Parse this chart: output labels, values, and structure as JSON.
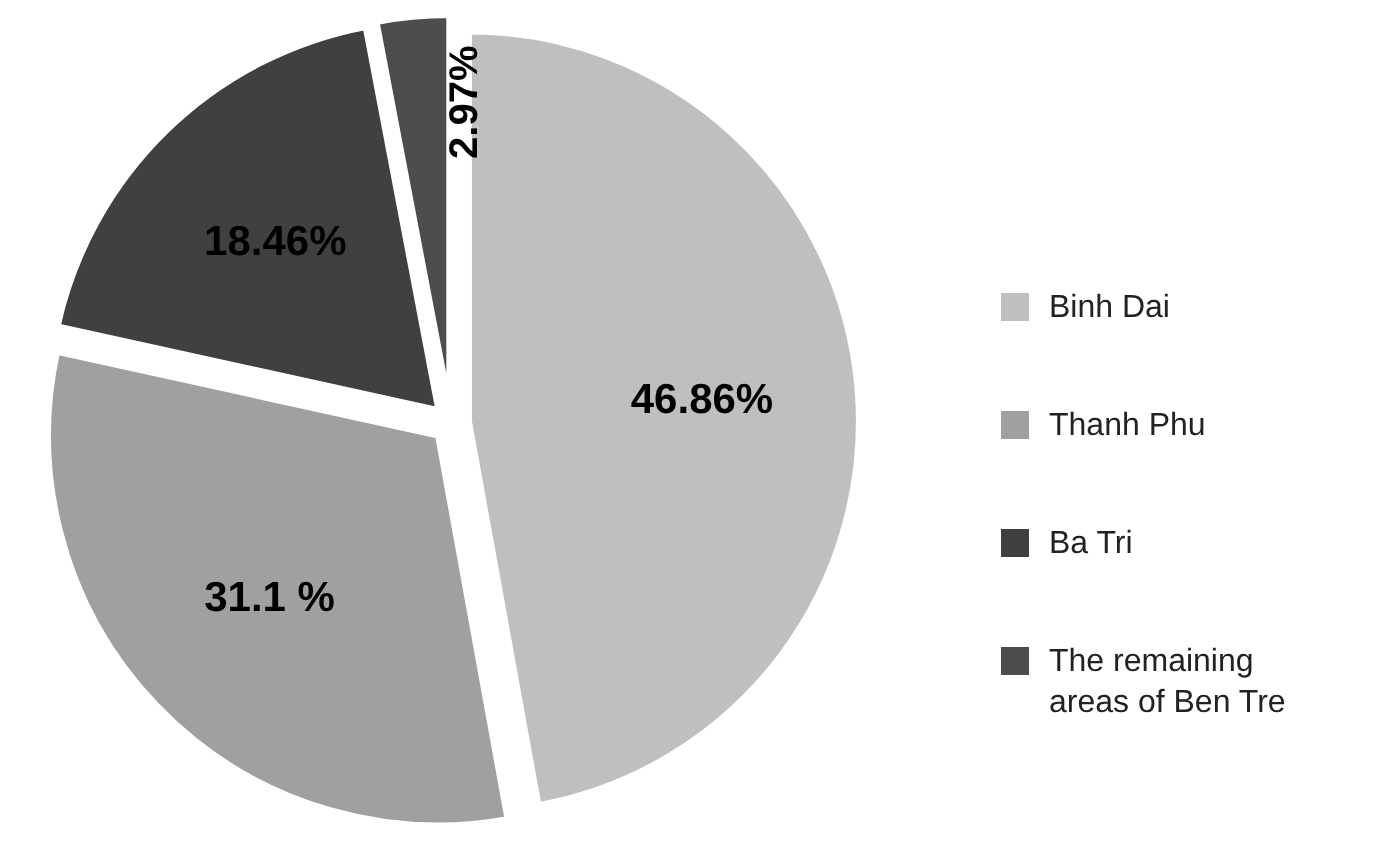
{
  "chart_data": {
    "type": "pie",
    "categories": [
      "Binh Dai",
      "Thanh Phu",
      "Ba Tri",
      "The remaining areas of Ben Tre"
    ],
    "values": [
      46.86,
      31.1,
      18.46,
      2.97
    ],
    "colors": [
      "#bfbfbf",
      "#a0a0a0",
      "#404040",
      "#4d4d4d"
    ],
    "value_labels": [
      "46.86%",
      "31.1 %",
      "18.46%",
      "2.97%"
    ],
    "legend": "right"
  }
}
